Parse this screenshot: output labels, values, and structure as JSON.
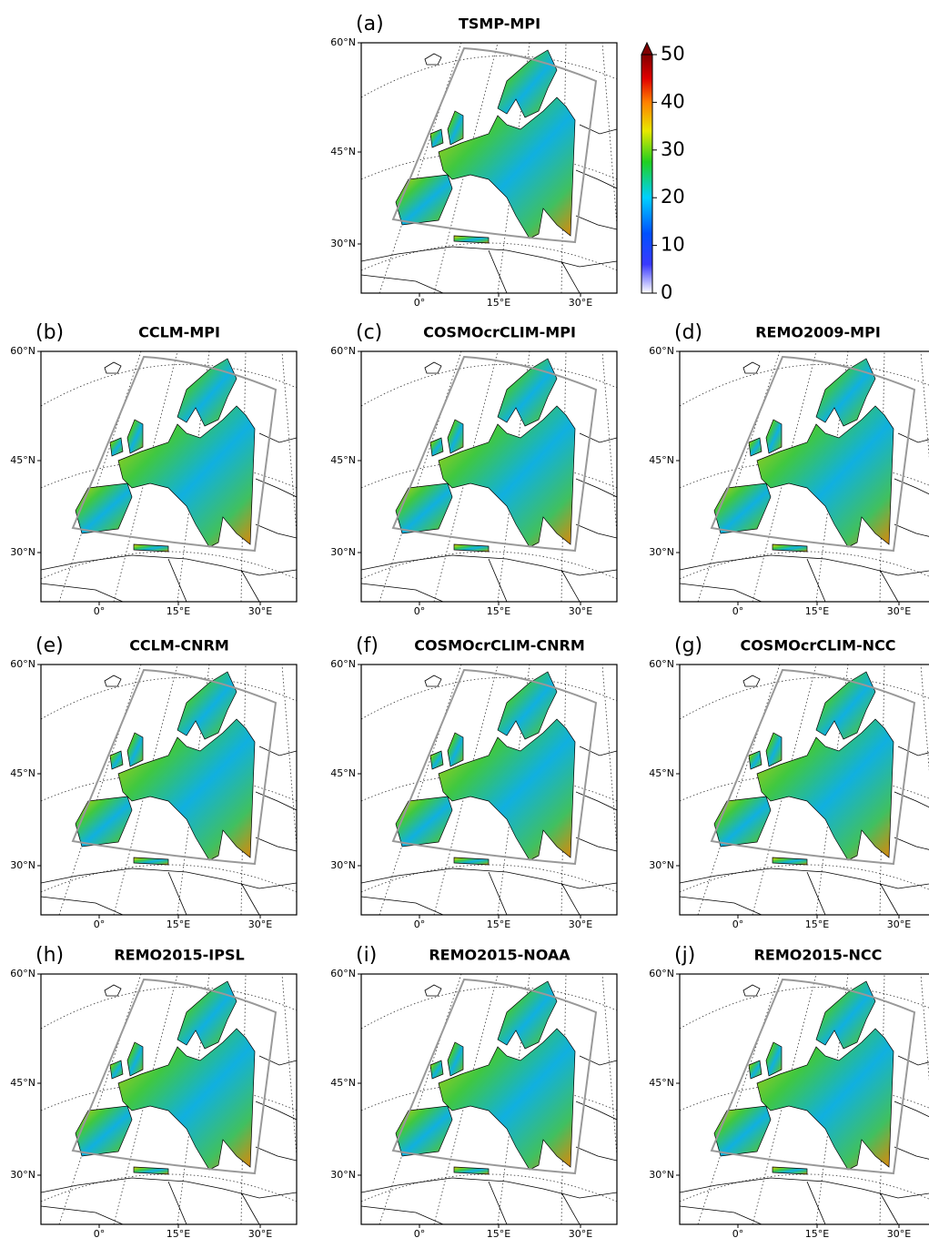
{
  "chart_data": {
    "type": "map",
    "panels": [
      {
        "letter": "(a)",
        "title": "TSMP-MPI"
      },
      {
        "letter": "(b)",
        "title": "CCLM-MPI"
      },
      {
        "letter": "(c)",
        "title": "COSMOcrCLIM-MPI"
      },
      {
        "letter": "(d)",
        "title": "REMO2009-MPI"
      },
      {
        "letter": "(e)",
        "title": "CCLM-CNRM"
      },
      {
        "letter": "(f)",
        "title": "COSMOcrCLIM-CNRM"
      },
      {
        "letter": "(g)",
        "title": "COSMOcrCLIM-NCC"
      },
      {
        "letter": "(h)",
        "title": "REMO2015-IPSL"
      },
      {
        "letter": "(i)",
        "title": "REMO2015-NOAA"
      },
      {
        "letter": "(j)",
        "title": "REMO2015-NCC"
      }
    ],
    "lat_labels": [
      "60°N",
      "45°N",
      "30°N"
    ],
    "lon_labels": [
      "0°",
      "15°E",
      "30°E"
    ],
    "colorbar": {
      "clim": [
        0,
        50
      ],
      "ticks": [
        0,
        10,
        20,
        30,
        40,
        50
      ],
      "extend": "max"
    }
  }
}
